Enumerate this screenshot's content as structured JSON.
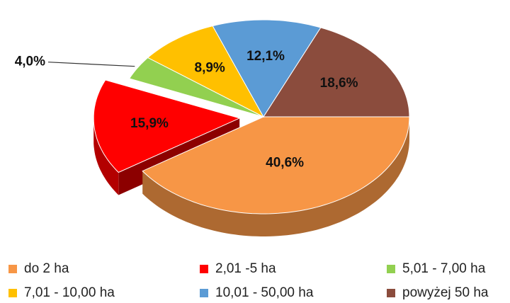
{
  "chart_data": {
    "type": "pie",
    "categories": [
      "do 2 ha",
      "2,01 -5 ha",
      "5,01 - 7,00 ha",
      "7,01 - 10,00 ha",
      "10,01 - 50,00 ha",
      "powyżej 50 ha"
    ],
    "values": [
      40.6,
      15.9,
      4.0,
      8.9,
      12.1,
      18.6
    ],
    "value_labels": [
      "40,6%",
      "15,9%",
      "4,0%",
      "8,9%",
      "12,1%",
      "18,6%"
    ],
    "colors": [
      "#f79646",
      "#ff0000",
      "#92d050",
      "#ffc000",
      "#5b9bd5",
      "#8b4c3d"
    ],
    "exploded": [
      1
    ],
    "legend": "bottom"
  }
}
